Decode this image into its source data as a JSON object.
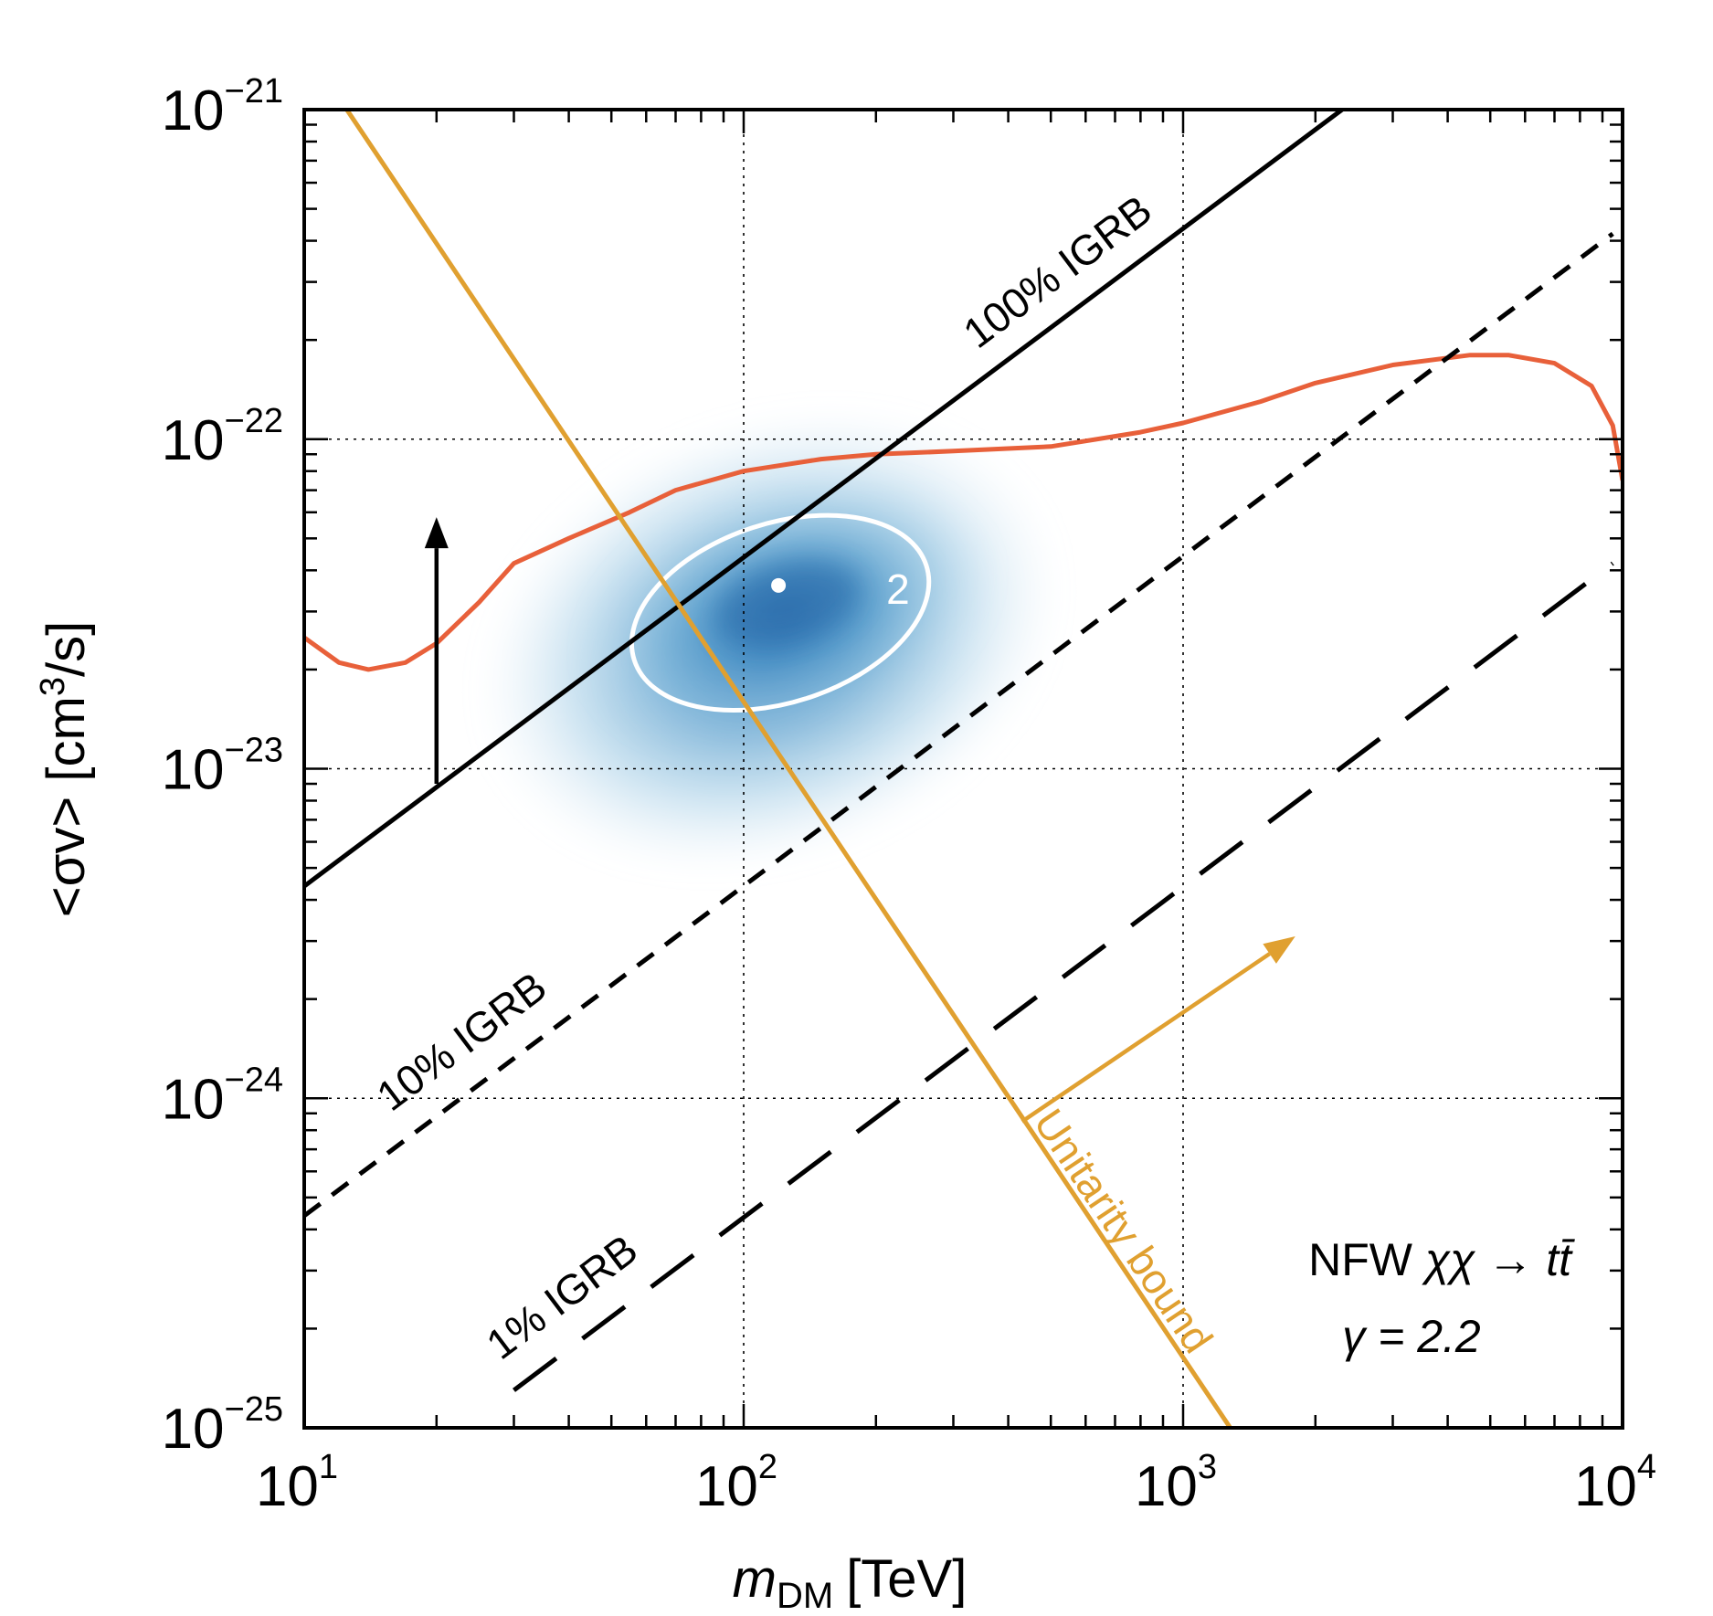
{
  "chart_data": {
    "type": "line",
    "scale": {
      "x": "log",
      "y": "log"
    },
    "xlim": [
      10,
      10000
    ],
    "ylim": [
      1e-25,
      1e-21
    ],
    "x_ticks": [
      {
        "base": "10",
        "exp": "1"
      },
      {
        "base": "10",
        "exp": "2"
      },
      {
        "base": "10",
        "exp": "3"
      },
      {
        "base": "10",
        "exp": "4"
      }
    ],
    "y_ticks": [
      {
        "base": "10",
        "exp": "−21"
      },
      {
        "base": "10",
        "exp": "−22"
      },
      {
        "base": "10",
        "exp": "−23"
      },
      {
        "base": "10",
        "exp": "−24"
      },
      {
        "base": "10",
        "exp": "−25"
      }
    ],
    "xlabel": {
      "var": "m",
      "sub": "DM",
      "unit": "[TeV]"
    },
    "ylabel": {
      "pre": "<σv>  [cm",
      "sup": "3",
      "post": "/s]"
    },
    "grid": "dotted at decades",
    "series": [
      {
        "name": "Limit",
        "color": "#e8603a",
        "x": [
          10,
          12,
          14,
          17,
          20,
          25,
          30,
          40,
          55,
          70,
          100,
          150,
          200,
          300,
          500,
          800,
          1000,
          1500,
          2000,
          3000,
          4500,
          5500,
          7000,
          8500,
          9500,
          10000
        ],
        "y": [
          2.5e-23,
          2.1e-23,
          2e-23,
          2.1e-23,
          2.4e-23,
          3.2e-23,
          4.2e-23,
          5e-23,
          6e-23,
          7e-23,
          8e-23,
          8.7e-23,
          9e-23,
          9.2e-23,
          9.5e-23,
          1.05e-22,
          1.12e-22,
          1.3e-22,
          1.48e-22,
          1.68e-22,
          1.8e-22,
          1.8e-22,
          1.7e-22,
          1.45e-22,
          1.1e-22,
          7.5e-23
        ]
      },
      {
        "name": "100% IGRB",
        "color": "#000000",
        "dash": "solid",
        "x": [
          10,
          2300
        ],
        "y": [
          4.4e-24,
          1e-21
        ]
      },
      {
        "name": "10% IGRB",
        "color": "#000000",
        "dash": "short",
        "x": [
          10,
          9500
        ],
        "y": [
          4.4e-25,
          4.2e-22
        ]
      },
      {
        "name": "1% IGRB",
        "color": "#000000",
        "dash": "long",
        "x": [
          30,
          9500
        ],
        "y": [
          1.3e-25,
          4.2e-23
        ]
      },
      {
        "name": "Unitarity bound",
        "color": "#e0a030",
        "dash": "solid",
        "x": [
          12.5,
          1280
        ],
        "y": [
          1e-21,
          1e-25
        ]
      }
    ],
    "best_fit": {
      "x": 120,
      "y": 3.6e-23
    },
    "contour_label": "2",
    "annotations": {
      "igrb100": "100% IGRB",
      "igrb10": "10% IGRB",
      "igrb1": "1% IGRB",
      "unitarity": "Unitarity bound"
    },
    "arrows": [
      {
        "name": "up-arrow",
        "color": "#000000",
        "from": [
          20,
          9e-24
        ],
        "to": [
          20,
          5.8e-23
        ]
      },
      {
        "name": "unitarity-arrow",
        "color": "#e0a030",
        "from": [
          430,
          8.5e-25
        ],
        "to": [
          1800,
          3.1e-24
        ]
      }
    ],
    "inset": {
      "line1_pre": "NFW ",
      "line1_process": "χχ → t",
      "line1_tbar": "t̄",
      "line2": "γ = 2.2"
    }
  }
}
